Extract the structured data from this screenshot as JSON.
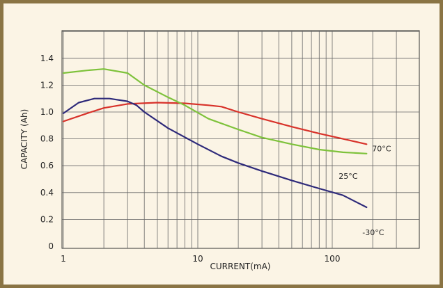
{
  "chart_data": {
    "type": "line",
    "title": "",
    "xlabel": "CURRENT(mA)",
    "ylabel": "CAPACITY (Ah)",
    "x_scale": "log",
    "xlim": [
      1,
      300
    ],
    "ylim": [
      0,
      1.6
    ],
    "x_ticks": [
      {
        "value": 1,
        "label": "1"
      },
      {
        "value": 10,
        "label": "10"
      },
      {
        "value": 100,
        "label": "100"
      }
    ],
    "y_ticks": [
      {
        "value": 0,
        "label": "0"
      },
      {
        "value": 0.2,
        "label": "0.2"
      },
      {
        "value": 0.4,
        "label": "0.4"
      },
      {
        "value": 0.6,
        "label": "0.6"
      },
      {
        "value": 0.8,
        "label": "0.8"
      },
      {
        "value": 1.0,
        "label": "1.0"
      },
      {
        "value": 1.2,
        "label": "1.2"
      },
      {
        "value": 1.4,
        "label": "1.4"
      }
    ],
    "grid": true,
    "series": [
      {
        "name": "70°C",
        "color": "#d8322a",
        "points": [
          [
            1,
            0.93
          ],
          [
            1.5,
            0.99
          ],
          [
            2,
            1.03
          ],
          [
            3,
            1.06
          ],
          [
            5,
            1.07
          ],
          [
            8,
            1.065
          ],
          [
            12,
            1.05
          ],
          [
            15,
            1.04
          ],
          [
            20,
            1.0
          ],
          [
            30,
            0.95
          ],
          [
            50,
            0.89
          ],
          [
            80,
            0.84
          ],
          [
            120,
            0.8
          ],
          [
            180,
            0.76
          ]
        ]
      },
      {
        "name": "25°C",
        "color": "#7ec23b",
        "points": [
          [
            1,
            1.29
          ],
          [
            1.5,
            1.31
          ],
          [
            2,
            1.32
          ],
          [
            3,
            1.29
          ],
          [
            4,
            1.2
          ],
          [
            6,
            1.11
          ],
          [
            8,
            1.05
          ],
          [
            12,
            0.95
          ],
          [
            20,
            0.87
          ],
          [
            30,
            0.81
          ],
          [
            50,
            0.76
          ],
          [
            80,
            0.72
          ],
          [
            120,
            0.7
          ],
          [
            180,
            0.69
          ]
        ]
      },
      {
        "name": "-30°C",
        "color": "#2e2a7a",
        "points": [
          [
            1,
            0.99
          ],
          [
            1.3,
            1.07
          ],
          [
            1.7,
            1.1
          ],
          [
            2.2,
            1.1
          ],
          [
            3,
            1.08
          ],
          [
            3.5,
            1.05
          ],
          [
            4,
            1.0
          ],
          [
            6,
            0.88
          ],
          [
            10,
            0.76
          ],
          [
            15,
            0.67
          ],
          [
            20,
            0.62
          ],
          [
            30,
            0.56
          ],
          [
            50,
            0.49
          ],
          [
            80,
            0.43
          ],
          [
            120,
            0.38
          ],
          [
            180,
            0.29
          ]
        ]
      }
    ]
  }
}
